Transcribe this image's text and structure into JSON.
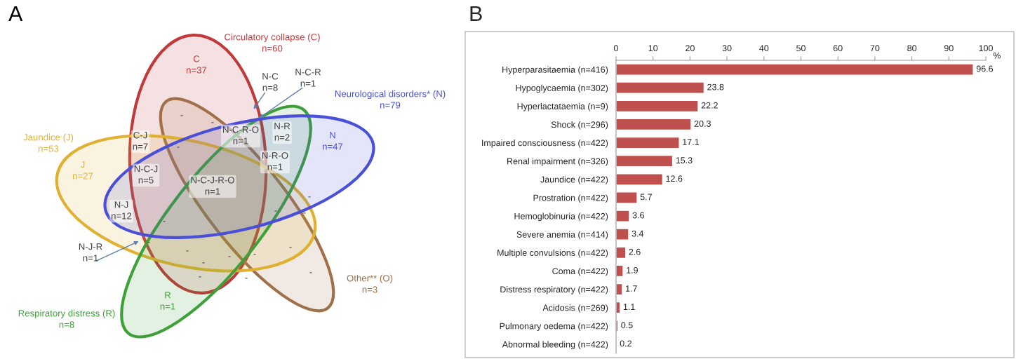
{
  "chart_data": [
    {
      "type": "other",
      "title": "A",
      "annotations": [
        "Circulatory collapse (C)\nn=60",
        "C\nn=37",
        "N-C\nn=8",
        "N-C-R\nn=1",
        "Neurological disorders* (N)\nn=79",
        "N-C-R-O\nn=1",
        "N-R\nn=2",
        "N\nn=47",
        "Jaundice (J)\nn=53",
        "C-J\nn=7",
        "N-R-O\nn=1",
        "J\nn=27",
        "N-C-J\nn=5",
        "N-C-J-R-O\nn=1",
        "N-J\nn=12",
        "N-J-R\nn=1",
        "Other** (O)\nn=3",
        "R\nn=1",
        "Respiratory distress (R)\nn=8",
        "-",
        "-",
        "-",
        "-",
        "-",
        "-",
        "-",
        "-",
        "-",
        "-",
        "-",
        "-",
        "-",
        "-",
        "-",
        "-"
      ]
    },
    {
      "type": "bar",
      "title": "B",
      "orientation": "horizontal",
      "xlabel": "%",
      "categories": [
        "Hyperparasitaemia (n=416)",
        "Hypoglycaemia (n=302)",
        "Hyperlactataemia (n=9)",
        "Shock (n=296)",
        "Impaired consciousness (n=422)",
        "Renal impairment (n=326)",
        "Jaundice (n=422)",
        "Prostration (n=422)",
        "Hemoglobinuria (n=422)",
        "Severe anemia (n=414)",
        "Multiple convulsions (n=422)",
        "Coma (n=422)",
        "Distress respiratory (n=422)",
        "Acidosis (n=269)",
        "Pulmonary oedema (n=422)",
        "Abnormal bleeding (n=422)"
      ],
      "values": [
        96.6,
        23.8,
        22.2,
        20.3,
        17.1,
        15.3,
        12.6,
        5.7,
        3.6,
        3.4,
        2.6,
        1.9,
        1.7,
        1.1,
        0.5,
        0.2
      ],
      "color": "#c0504d",
      "xlim": [
        0,
        100
      ],
      "xticks": [
        0,
        10,
        20,
        30,
        40,
        50,
        60,
        70,
        80,
        90,
        100
      ],
      "data_labels": true,
      "grid": false,
      "legend": false
    }
  ]
}
